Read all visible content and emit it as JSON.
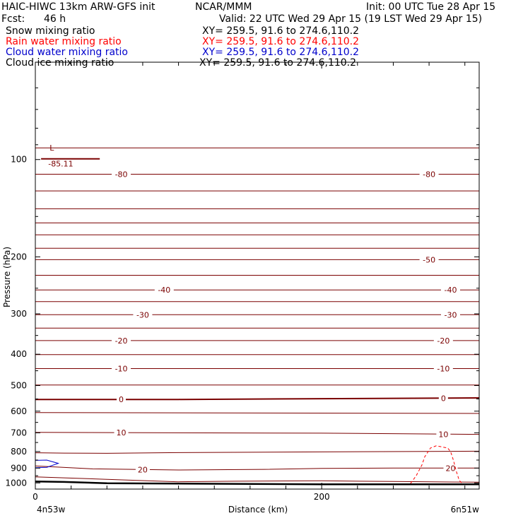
{
  "header": {
    "model_title": "HAIC-HIWC 13km ARW-GFS init",
    "org": "NCAR/MMM",
    "init_time": "Init: 00 UTC Tue 28 Apr 15",
    "fcst_label": "Fcst:",
    "fcst_value": "46 h",
    "valid_time": "Valid: 22 UTC Wed 29 Apr 15 (19 LST Wed 29 Apr 15)",
    "fields": [
      {
        "name": "Snow mixing ratio",
        "xy": "XY= 259.5, 91.6 to 274.6,110.2",
        "color": "#000000"
      },
      {
        "name": "Rain water mixing ratio",
        "xy": "XY= 259.5, 91.6 to 274.6,110.2",
        "color": "#ff0000"
      },
      {
        "name": "Cloud water mixing ratio",
        "xy": "XY= 259.5, 91.6 to 274.6,110.2",
        "color": "#0000cc"
      },
      {
        "name": "Cloud ice mixing ratio",
        "xy": "XY= 259.5, 91.6 to 274.6,110.2",
        "color": "#000000"
      }
    ]
  },
  "axes": {
    "ylabel": "Pressure (hPa)",
    "xlabel": "Distance (km)",
    "x_start_label": "4n53w",
    "x_end_label": "6n51w"
  },
  "colors": {
    "temperature": "#7a0000",
    "rain": "#ff0000",
    "cloud_water": "#0000cc",
    "terrain": "#000000"
  },
  "chart_data": {
    "type": "line",
    "title": "",
    "x_unit": "km",
    "xlim": [
      0,
      310
    ],
    "ylim": [
      1045,
      50
    ],
    "y_scale": "log",
    "y_ticks": [
      100,
      200,
      300,
      400,
      500,
      600,
      700,
      800,
      900,
      1000
    ],
    "x_ticks": [
      0,
      200
    ],
    "x_minor_step": 25,
    "temperature_contours": [
      {
        "level": -85.11,
        "label": "-85.11",
        "points": [
          [
            0,
            86
          ],
          [
            310,
            86
          ]
        ]
      },
      {
        "level": -85,
        "label": "",
        "points": [
          [
            0,
            92
          ],
          [
            310,
            92
          ]
        ]
      },
      {
        "level": -80,
        "label": "-80",
        "points": [
          [
            0,
            111
          ],
          [
            310,
            111
          ]
        ]
      },
      {
        "level": -75,
        "label": "",
        "points": [
          [
            0,
            125
          ],
          [
            310,
            125
          ]
        ]
      },
      {
        "level": -70,
        "label": "",
        "points": [
          [
            0,
            142
          ],
          [
            310,
            142
          ]
        ]
      },
      {
        "level": -65,
        "label": "",
        "points": [
          [
            0,
            157
          ],
          [
            310,
            157
          ]
        ]
      },
      {
        "level": -60,
        "label": "",
        "points": [
          [
            0,
            171
          ],
          [
            310,
            171
          ]
        ]
      },
      {
        "level": -55,
        "label": "",
        "points": [
          [
            0,
            188
          ],
          [
            310,
            188
          ]
        ]
      },
      {
        "level": -50,
        "label": "-50",
        "points": [
          [
            0,
            204
          ],
          [
            310,
            204
          ]
        ]
      },
      {
        "level": -45,
        "label": "",
        "points": [
          [
            0,
            228
          ],
          [
            310,
            228
          ]
        ]
      },
      {
        "level": -40,
        "label": "-40",
        "points": [
          [
            0,
            253
          ],
          [
            310,
            253
          ]
        ]
      },
      {
        "level": -35,
        "label": "",
        "points": [
          [
            0,
            275
          ],
          [
            310,
            275
          ]
        ]
      },
      {
        "level": -30,
        "label": "-30",
        "points": [
          [
            0,
            302
          ],
          [
            310,
            302
          ]
        ]
      },
      {
        "level": -25,
        "label": "",
        "points": [
          [
            0,
            332
          ],
          [
            310,
            332
          ]
        ]
      },
      {
        "level": -20,
        "label": "-20",
        "points": [
          [
            0,
            363
          ],
          [
            310,
            363
          ]
        ]
      },
      {
        "level": -15,
        "label": "",
        "points": [
          [
            0,
            401
          ],
          [
            310,
            401
          ]
        ]
      },
      {
        "level": -10,
        "label": "-10",
        "points": [
          [
            0,
            443
          ],
          [
            310,
            443
          ]
        ]
      },
      {
        "level": -5,
        "label": "",
        "points": [
          [
            0,
            498
          ],
          [
            310,
            498
          ]
        ]
      },
      {
        "level": 0,
        "label": "0",
        "points": [
          [
            0,
            552
          ],
          [
            100,
            552
          ],
          [
            200,
            549
          ],
          [
            310,
            546
          ]
        ]
      },
      {
        "level": 5,
        "label": "",
        "points": [
          [
            0,
            606
          ],
          [
            310,
            610
          ]
        ]
      },
      {
        "level": 10,
        "label": "10",
        "points": [
          [
            0,
            698
          ],
          [
            200,
            702
          ],
          [
            310,
            708
          ]
        ]
      },
      {
        "level": 15,
        "label": "",
        "points": [
          [
            0,
            807
          ],
          [
            20,
            809
          ],
          [
            50,
            810
          ],
          [
            100,
            806
          ],
          [
            200,
            802
          ],
          [
            310,
            798
          ]
        ]
      },
      {
        "level": 20,
        "label": "20",
        "points": [
          [
            0,
            886
          ],
          [
            40,
            905
          ],
          [
            100,
            912
          ],
          [
            160,
            908
          ],
          [
            200,
            902
          ],
          [
            250,
            900
          ],
          [
            310,
            900
          ]
        ]
      },
      {
        "level": 25,
        "label": "",
        "points": [
          [
            0,
            958
          ],
          [
            50,
            975
          ],
          [
            100,
            992
          ],
          [
            140,
            988
          ],
          [
            200,
            985
          ],
          [
            250,
            990
          ],
          [
            310,
            995
          ]
        ]
      }
    ],
    "rain_contour_level": 0.01,
    "rain_contour": [
      [
        262,
        1005
      ],
      [
        266,
        950
      ],
      [
        270,
        880
      ],
      [
        272,
        830
      ],
      [
        276,
        780
      ],
      [
        280,
        768
      ],
      [
        288,
        780
      ],
      [
        290,
        800
      ],
      [
        292,
        850
      ],
      [
        294,
        920
      ],
      [
        296,
        980
      ],
      [
        298,
        1005
      ]
    ],
    "cloud_water_contour": [
      [
        0,
        852
      ],
      [
        8,
        850
      ],
      [
        16,
        870
      ],
      [
        8,
        895
      ],
      [
        0,
        897
      ]
    ],
    "terrain": [
      [
        0,
        990
      ],
      [
        20,
        993
      ],
      [
        50,
        1002
      ],
      [
        100,
        1005
      ],
      [
        150,
        1008
      ],
      [
        200,
        1010
      ],
      [
        250,
        1010
      ],
      [
        310,
        1010
      ]
    ],
    "labels_L": "L",
    "labels_min": "-85.11"
  }
}
